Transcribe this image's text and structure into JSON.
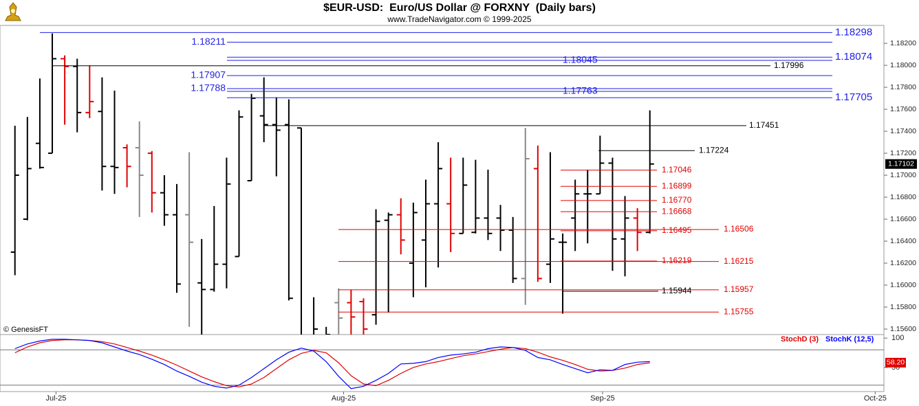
{
  "chart_data": [
    {
      "type": "ohlc",
      "title": "$EUR-USD:  Euro/US Dollar @ FORXNY  (Daily bars)",
      "subtitle": "www.TradeNavigator.com © 1999-2025",
      "source": "© GenesisFT",
      "categories": [
        null,
        null,
        null,
        null,
        null,
        null,
        null,
        null,
        null,
        null,
        null,
        null,
        null,
        null,
        null,
        null,
        null,
        null,
        null,
        null,
        null,
        null,
        null,
        null,
        null,
        null,
        null,
        null,
        null,
        null,
        null,
        null,
        null,
        null,
        null,
        null,
        null,
        null,
        null,
        null,
        null,
        null,
        null,
        null,
        null,
        null,
        null,
        null,
        null,
        null,
        null,
        null
      ],
      "open": [
        1.163,
        1.166,
        1.1729,
        1.172,
        1.1806,
        1.1799,
        1.1757,
        1.1758,
        1.1708,
        1.1725,
        1.1725,
        1.172,
        1.1684,
        1.1664,
        1.1664,
        1.1602,
        1.1596,
        1.1619,
        1.1626,
        1.1695,
        1.1754,
        1.1746,
        1.1746,
        1.1743,
        1.155,
        1.154,
        1.1584,
        1.1584,
        1.1585,
        1.1573,
        1.1659,
        1.1664,
        1.162,
        1.1641,
        1.1674,
        1.1674,
        1.1647,
        1.1648,
        1.1661,
        1.1661,
        1.165,
        1.1606,
        1.1706,
        1.1619,
        1.1639,
        1.1661,
        1.1683,
        1.1683,
        1.1711,
        1.1642,
        1.1661,
        1.1648
      ],
      "high": [
        1.1745,
        1.1753,
        1.1788,
        1.1829,
        1.1809,
        1.1806,
        1.18,
        1.1789,
        1.1777,
        1.1728,
        1.1749,
        1.1722,
        1.17,
        1.1692,
        1.1721,
        1.1642,
        1.1672,
        1.1716,
        1.1759,
        1.1774,
        1.1789,
        1.1771,
        1.1769,
        1.1743,
        1.1589,
        1.1562,
        1.1597,
        1.1596,
        1.1588,
        1.1669,
        1.1666,
        1.1679,
        1.1675,
        1.1696,
        1.173,
        1.1716,
        1.1716,
        1.1714,
        1.1705,
        1.1673,
        1.1662,
        1.1743,
        1.1727,
        1.1721,
        1.1647,
        1.1696,
        1.1705,
        1.1736,
        1.1716,
        1.1681,
        1.167,
        1.1759
      ],
      "low": [
        1.1609,
        1.1659,
        1.1706,
        1.172,
        1.1746,
        1.1739,
        1.1752,
        1.1686,
        1.1683,
        1.1689,
        1.1662,
        1.1666,
        1.1654,
        1.1593,
        1.1562,
        1.1548,
        1.1594,
        1.1597,
        1.1626,
        1.1695,
        1.173,
        1.1699,
        1.1586,
        1.154,
        1.1535,
        1.153,
        1.1545,
        1.1545,
        1.1545,
        1.1564,
        1.1575,
        1.1628,
        1.1589,
        1.1598,
        1.1616,
        1.163,
        1.1647,
        1.1647,
        1.1641,
        1.1631,
        1.1602,
        1.1582,
        1.1603,
        1.1602,
        1.1574,
        1.1631,
        1.1638,
        1.1683,
        1.1613,
        1.1608,
        1.1631,
        1.1647
      ],
      "close": [
        1.17,
        1.1706,
        1.1707,
        1.1806,
        1.1799,
        1.1757,
        1.1767,
        1.1708,
        1.1707,
        1.1708,
        1.17,
        1.1684,
        1.1664,
        1.1601,
        1.1639,
        1.1596,
        1.1619,
        1.1692,
        1.1753,
        1.177,
        1.1746,
        1.1741,
        1.1588,
        1.1545,
        1.156,
        1.1555,
        1.157,
        1.1571,
        1.156,
        1.1658,
        1.1664,
        1.1641,
        1.1666,
        1.1674,
        1.1706,
        1.1647,
        1.1691,
        1.1661,
        1.1647,
        1.165,
        1.1606,
        1.1715,
        1.1606,
        1.1642,
        1.1639,
        1.1683,
        1.1683,
        1.1711,
        1.1642,
        1.1661,
        1.1648,
        1.17102
      ],
      "bar_colors": [
        "#000",
        "#000",
        "#000",
        "#000",
        "#e00000",
        "#000",
        "#e00000",
        "#000",
        "#000",
        "#e00000",
        "#888",
        "#e00000",
        "#000",
        "#000",
        "#888",
        "#000",
        "#000",
        "#000",
        "#000",
        "#000",
        "#000",
        "#000",
        "#000",
        "#000",
        "#000",
        "#000",
        "#888",
        "#e00000",
        "#e00000",
        "#000",
        "#000",
        "#e00000",
        "#000",
        "#000",
        "#000",
        "#e00000",
        "#000",
        "#000",
        "#000",
        "#000",
        "#000",
        "#888",
        "#e00000",
        "#000",
        "#000",
        "#000",
        "#000",
        "#000",
        "#000",
        "#000",
        "#e00000",
        "#000"
      ],
      "levels": [
        {
          "value": 1.18298,
          "color": "#1f1fe6"
        },
        {
          "value": 1.18211,
          "color": "#1f1fe6"
        },
        {
          "value": 1.18074,
          "color": "#1f1fe6"
        },
        {
          "value": 1.18045,
          "color": "#1f1fe6"
        },
        {
          "value": 1.17996,
          "color": "#000000"
        },
        {
          "value": 1.17907,
          "color": "#1f1fe6"
        },
        {
          "value": 1.17788,
          "color": "#1f1fe6"
        },
        {
          "value": 1.17763,
          "color": "#1f1fe6"
        },
        {
          "value": 1.17705,
          "color": "#1f1fe6"
        },
        {
          "value": 1.17451,
          "color": "#000000"
        },
        {
          "value": 1.17224,
          "color": "#000000"
        },
        {
          "value": 1.17046,
          "color": "#e00000"
        },
        {
          "value": 1.16899,
          "color": "#e00000"
        },
        {
          "value": 1.1677,
          "label": "1.16770",
          "color": "#e00000"
        },
        {
          "value": 1.16668,
          "color": "#e00000"
        },
        {
          "value": 1.16495,
          "color": "#e00000"
        },
        {
          "value": 1.16506,
          "color": "#e00000"
        },
        {
          "value": 1.16219,
          "color": "#e00000"
        },
        {
          "value": 1.16215,
          "color": "#e00000"
        },
        {
          "value": 1.15957,
          "color": "#e00000"
        },
        {
          "value": 1.15944,
          "color": "#000000"
        },
        {
          "value": 1.15755,
          "color": "#e00000"
        }
      ],
      "last_price": 1.17102,
      "xlim": [
        -1.2,
        69.8
      ],
      "ylim": [
        1.1555,
        1.18363
      ],
      "yticks": [
        {
          "value": 1.156,
          "label": "1.15600"
        },
        {
          "value": 1.158,
          "label": "1.15800"
        },
        {
          "value": 1.16,
          "label": "1.16000"
        },
        {
          "value": 1.162,
          "label": "1.16200"
        },
        {
          "value": 1.164,
          "label": "1.16400"
        },
        {
          "value": 1.166,
          "label": "1.16600"
        },
        {
          "value": 1.168,
          "label": "1.16800"
        },
        {
          "value": 1.17,
          "label": "1.17000"
        },
        {
          "value": 1.172,
          "label": "1.17200"
        },
        {
          "value": 1.174,
          "label": "1.17400"
        },
        {
          "value": 1.176,
          "label": "1.17600"
        },
        {
          "value": 1.178,
          "label": "1.17800"
        },
        {
          "value": 1.18,
          "label": "1.18000"
        },
        {
          "value": 1.182,
          "label": "1.18200"
        }
      ]
    },
    {
      "type": "line",
      "categories": [
        null,
        null,
        null,
        null,
        null,
        null,
        null,
        null,
        null,
        null,
        null,
        null,
        null,
        null,
        null,
        null,
        null,
        null,
        null,
        null,
        null,
        null,
        null,
        null,
        null,
        null,
        null,
        null,
        null,
        null,
        null,
        null,
        null,
        null,
        null,
        null,
        null,
        null,
        null,
        null,
        null,
        null,
        null,
        null,
        null,
        null,
        null,
        null,
        null,
        null,
        null,
        null
      ],
      "series": [
        {
          "name": "StochD (3)",
          "color": "#e00000",
          "values": [
            75,
            85,
            92,
            96,
            97,
            97,
            96,
            94,
            90,
            84,
            78,
            71,
            63,
            54,
            44,
            34,
            26,
            19,
            17,
            22,
            33,
            48,
            63,
            74,
            79,
            75,
            58,
            36,
            22,
            19,
            28,
            40,
            50,
            56,
            60,
            65,
            70,
            73,
            77,
            81,
            84,
            82,
            76,
            68,
            62,
            55,
            47,
            44,
            45,
            49,
            55,
            58
          ]
        },
        {
          "name": "StochK (12,5)",
          "color": "#0000ff",
          "values": [
            82,
            90,
            95,
            98,
            98,
            97,
            96,
            92,
            85,
            78,
            72,
            64,
            55,
            44,
            35,
            25,
            18,
            15,
            20,
            33,
            48,
            63,
            76,
            83,
            78,
            60,
            35,
            14,
            18,
            28,
            40,
            56,
            57,
            60,
            67,
            71,
            73,
            76,
            82,
            85,
            84,
            79,
            67,
            63,
            55,
            48,
            41,
            46,
            45,
            55,
            59,
            60
          ]
        }
      ],
      "last_value": {
        "value": 58.2,
        "label": "58.20"
      },
      "ref_lines": [
        80,
        20
      ],
      "xlim": [
        -1.2,
        69.8
      ],
      "ylim": [
        9,
        106
      ],
      "yticks": [
        100,
        50
      ],
      "xticks": [
        {
          "value": 3.3,
          "label": "Jul-25"
        },
        {
          "value": 26.4,
          "label": "Aug-25"
        },
        {
          "value": 47.2,
          "label": "Sep-25"
        },
        {
          "value": 69.1,
          "label": "Oct-25"
        }
      ]
    }
  ]
}
